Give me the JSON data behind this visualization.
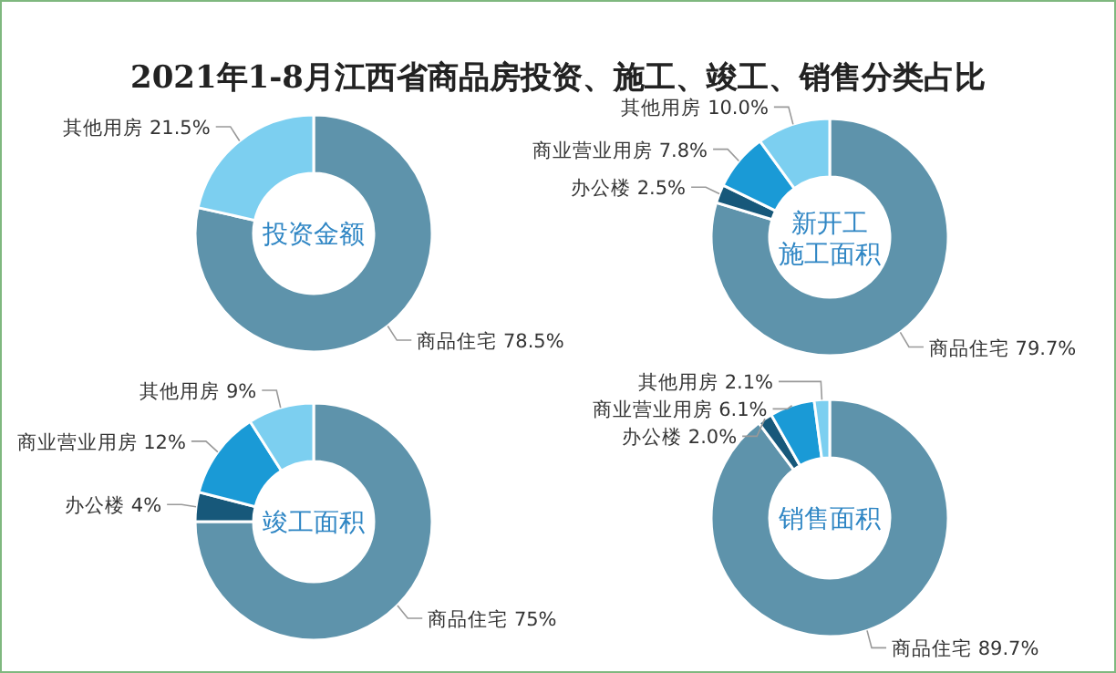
{
  "chart_data": [
    {
      "type": "donut",
      "title": "2021年1-8月江西省商品房投资、施工、竣工、销售分类占比",
      "subtitle": "投资金额",
      "categories": [
        "商品住宅",
        "其他用房"
      ],
      "values": [
        78.5,
        21.5
      ],
      "value_labels": [
        "78.5%",
        "21.5%"
      ],
      "colors": [
        "#5e93ab",
        "#7ccff0"
      ]
    },
    {
      "type": "donut",
      "subtitle": "新开工施工面积",
      "categories": [
        "商品住宅",
        "办公楼",
        "商业营业用房",
        "其他用房"
      ],
      "values": [
        79.7,
        2.5,
        7.8,
        10.0
      ],
      "value_labels": [
        "79.7%",
        "2.5%",
        "7.8%",
        "10.0%"
      ],
      "colors": [
        "#5e93ab",
        "#17587a",
        "#1a9ad6",
        "#7ccff0"
      ]
    },
    {
      "type": "donut",
      "subtitle": "竣工面积",
      "categories": [
        "商品住宅",
        "办公楼",
        "商业营业用房",
        "其他用房"
      ],
      "values": [
        75,
        4,
        12,
        9
      ],
      "value_labels": [
        "75%",
        "4%",
        "12%",
        "9%"
      ],
      "colors": [
        "#5e93ab",
        "#17587a",
        "#1a9ad6",
        "#7ccff0"
      ]
    },
    {
      "type": "donut",
      "subtitle": "销售面积",
      "categories": [
        "商品住宅",
        "办公楼",
        "商业营业用房",
        "其他用房"
      ],
      "values": [
        89.7,
        2.0,
        6.1,
        2.1
      ],
      "value_labels": [
        "89.7%",
        "2.0%",
        "6.1%",
        "2.1%"
      ],
      "colors": [
        "#5e93ab",
        "#17587a",
        "#1a9ad6",
        "#7ccff0"
      ]
    }
  ]
}
